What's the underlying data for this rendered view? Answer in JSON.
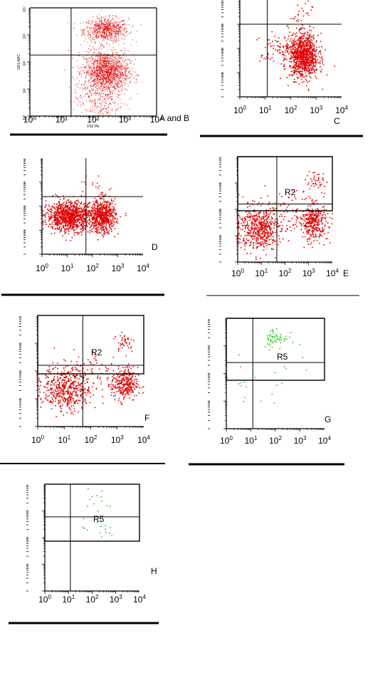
{
  "colors": {
    "red": "#e00000",
    "green": "#22cc22",
    "black": "#000000"
  },
  "chart_data": [
    {
      "id": "A",
      "type": "scatter",
      "title": "A and B",
      "xlabel": "FS2 PE",
      "ylabel": "GR1 APC",
      "scale": "log",
      "xlim": [
        1,
        10000
      ],
      "ylim": [
        1,
        10000
      ],
      "x_tick_labels": [
        "10⁰",
        "10¹",
        "10²",
        "10³",
        "10⁴"
      ],
      "y_tick_labels": [
        "10⁰",
        "10¹",
        "10²",
        "10³",
        "10⁴"
      ],
      "quadrant_lines": {
        "x": 20,
        "y": 180
      },
      "series": [
        {
          "color": "red",
          "clusters": [
            {
              "cx": 250,
              "cy": 1600,
              "sx": 0.35,
              "sy": 0.22,
              "n": 700
            },
            {
              "cx": 250,
              "cy": 45,
              "sx": 0.35,
              "sy": 0.38,
              "n": 1500
            },
            {
              "cx": 150,
              "cy": 4,
              "sx": 0.4,
              "sy": 0.4,
              "n": 250
            }
          ]
        }
      ],
      "regions": []
    },
    {
      "id": "C",
      "type": "scatter",
      "title": "C",
      "xlabel": "",
      "ylabel": "",
      "scale": "log",
      "xlim": [
        1,
        10000
      ],
      "ylim": [
        1,
        10000
      ],
      "x_tick_labels": [
        "10",
        "10",
        "10",
        "10",
        "10"
      ],
      "x_tick_sups": [
        "0",
        "1",
        "2",
        "3",
        "4"
      ],
      "quadrant_lines": {
        "x": 12,
        "y": 1000
      },
      "series": [
        {
          "color": "red",
          "clusters": [
            {
              "cx": 320,
              "cy": 50,
              "sx": 0.28,
              "sy": 0.45,
              "n": 900
            },
            {
              "cx": 60,
              "cy": 80,
              "sx": 0.5,
              "sy": 0.4,
              "n": 150
            },
            {
              "cx": 300,
              "cy": 2500,
              "sx": 0.3,
              "sy": 0.3,
              "n": 30
            }
          ]
        }
      ],
      "regions": []
    },
    {
      "id": "D",
      "type": "scatter",
      "title": "D",
      "xlabel": "",
      "ylabel": "",
      "scale": "log",
      "xlim": [
        1,
        10000
      ],
      "ylim": [
        1,
        10000
      ],
      "x_tick_labels": [
        "10",
        "10",
        "10",
        "10",
        "10"
      ],
      "x_tick_sups": [
        "0",
        "1",
        "2",
        "3",
        "4"
      ],
      "quadrant_lines": {
        "x": 55,
        "y": 250
      },
      "series": [
        {
          "color": "red",
          "clusters": [
            {
              "cx": 12,
              "cy": 40,
              "sx": 0.45,
              "sy": 0.3,
              "n": 1000
            },
            {
              "cx": 250,
              "cy": 40,
              "sx": 0.25,
              "sy": 0.35,
              "n": 600
            },
            {
              "cx": 100,
              "cy": 600,
              "sx": 0.5,
              "sy": 0.3,
              "n": 20
            }
          ]
        }
      ],
      "regions": []
    },
    {
      "id": "E",
      "type": "scatter",
      "title": "E",
      "xlabel": "",
      "ylabel": "",
      "scale": "log",
      "xlim": [
        1,
        10000
      ],
      "ylim": [
        1,
        10000
      ],
      "x_tick_labels": [
        "10",
        "10",
        "10",
        "10",
        "10"
      ],
      "x_tick_sups": [
        "0",
        "1",
        "2",
        "3",
        "4"
      ],
      "quadrant_lines": {
        "x": 45,
        "y": 160
      },
      "series": [
        {
          "color": "red",
          "clusters": [
            {
              "cx": 8,
              "cy": 20,
              "sx": 0.45,
              "sy": 0.4,
              "n": 550
            },
            {
              "cx": 1500,
              "cy": 35,
              "sx": 0.3,
              "sy": 0.35,
              "n": 350
            },
            {
              "cx": 1800,
              "cy": 1200,
              "sx": 0.25,
              "sy": 0.2,
              "n": 40
            },
            {
              "cx": 150,
              "cy": 100,
              "sx": 0.5,
              "sy": 0.4,
              "n": 60
            }
          ]
        }
      ],
      "regions": [
        {
          "label": "R2",
          "x": [
            45,
            10000
          ],
          "y": [
            160,
            10000
          ]
        }
      ]
    },
    {
      "id": "F",
      "type": "scatter",
      "title": "F",
      "xlabel": "",
      "ylabel": "",
      "scale": "log",
      "xlim": [
        1,
        10000
      ],
      "ylim": [
        1,
        10000
      ],
      "x_tick_labels": [
        "10",
        "10",
        "10",
        "10",
        "10"
      ],
      "x_tick_sups": [
        "0",
        "1",
        "2",
        "3",
        "4"
      ],
      "quadrant_lines": {
        "x": 50,
        "y": 160
      },
      "series": [
        {
          "color": "red",
          "clusters": [
            {
              "cx": 12,
              "cy": 25,
              "sx": 0.45,
              "sy": 0.4,
              "n": 500
            },
            {
              "cx": 1800,
              "cy": 35,
              "sx": 0.25,
              "sy": 0.3,
              "n": 300
            },
            {
              "cx": 1800,
              "cy": 1200,
              "sx": 0.2,
              "sy": 0.2,
              "n": 40
            },
            {
              "cx": 200,
              "cy": 100,
              "sx": 0.5,
              "sy": 0.4,
              "n": 60
            }
          ]
        }
      ],
      "regions": [
        {
          "label": "R2",
          "x": [
            1,
            10000
          ],
          "y": [
            160,
            10000
          ]
        }
      ]
    },
    {
      "id": "G",
      "type": "scatter",
      "title": "G",
      "xlabel": "",
      "ylabel": "",
      "scale": "log",
      "xlim": [
        1,
        10000
      ],
      "ylim": [
        1,
        10000
      ],
      "x_tick_labels": [
        "10",
        "10",
        "10",
        "10",
        "10"
      ],
      "x_tick_sups": [
        "0",
        "1",
        "2",
        "3",
        "4"
      ],
      "quadrant_lines": {
        "x": 12,
        "y": 250
      },
      "series": [
        {
          "color": "green",
          "clusters": [
            {
              "cx": 100,
              "cy": 2000,
              "sx": 0.25,
              "sy": 0.2,
              "n": 55
            },
            {
              "cx": 5,
              "cy": 50,
              "sx": 0.4,
              "sy": 0.4,
              "n": 12
            },
            {
              "cx": 200,
              "cy": 200,
              "sx": 0.6,
              "sy": 0.5,
              "n": 10
            }
          ]
        }
      ],
      "regions": [
        {
          "label": "R5",
          "x": [
            12,
            10000
          ],
          "y": [
            250,
            10000
          ]
        }
      ]
    },
    {
      "id": "H",
      "type": "scatter",
      "title": "H",
      "xlabel": "",
      "ylabel": "",
      "scale": "log",
      "xlim": [
        1,
        10000
      ],
      "ylim": [
        1,
        10000
      ],
      "x_tick_labels": [
        "10",
        "10",
        "10",
        "10",
        "10"
      ],
      "x_tick_sups": [
        "0",
        "1",
        "2",
        "3",
        "4"
      ],
      "quadrant_lines": {
        "x": 12,
        "y": 600
      },
      "series": [
        {
          "color": "green",
          "clusters": [
            {
              "cx": 150,
              "cy": 2500,
              "sx": 0.35,
              "sy": 0.25,
              "n": 12
            },
            {
              "cx": 150,
              "cy": 200,
              "sx": 0.4,
              "sy": 0.2,
              "n": 14
            }
          ]
        }
      ],
      "regions": [
        {
          "label": "R5",
          "x": [
            12,
            10000
          ],
          "y": [
            600,
            10000
          ]
        }
      ]
    }
  ]
}
